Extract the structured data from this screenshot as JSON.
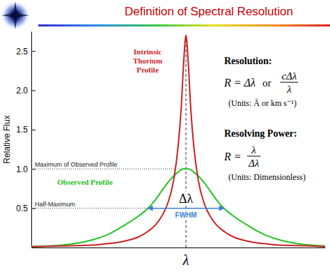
{
  "chart_data": {
    "type": "line",
    "title": "Definition of Spectral Resolution",
    "y_label": "Relative Flux",
    "x_label": "λ",
    "x": [
      -1,
      -0.8,
      -0.6,
      -0.5,
      -0.4,
      -0.3,
      -0.25,
      -0.2,
      -0.15,
      -0.12,
      -0.08,
      -0.05,
      -0.03,
      -0.015,
      0,
      0.015,
      0.03,
      0.05,
      0.08,
      0.12,
      0.15,
      0.2,
      0.25,
      0.3,
      0.4,
      0.5,
      0.6,
      0.8,
      0.9
    ],
    "series": [
      {
        "name": "Intrinsic Thorium Profile",
        "color": "#cc1f1f",
        "values": [
          0.01,
          0.02,
          0.03,
          0.05,
          0.08,
          0.14,
          0.2,
          0.28,
          0.42,
          0.55,
          0.85,
          1.3,
          1.8,
          2.35,
          2.7,
          2.35,
          1.8,
          1.3,
          0.85,
          0.55,
          0.42,
          0.28,
          0.2,
          0.14,
          0.08,
          0.05,
          0.03,
          0.02,
          0.01
        ]
      },
      {
        "name": "Observed Profile",
        "color": "#22c322",
        "values": [
          0.01,
          0.03,
          0.1,
          0.17,
          0.28,
          0.41,
          0.49,
          0.6,
          0.74,
          0.82,
          0.91,
          0.96,
          0.99,
          1.0,
          1.0,
          1.0,
          0.99,
          0.96,
          0.91,
          0.82,
          0.74,
          0.6,
          0.49,
          0.41,
          0.28,
          0.17,
          0.1,
          0.03,
          0.02
        ]
      }
    ],
    "xlim": [
      -1,
      0.9
    ],
    "ylim": [
      0,
      2.75
    ],
    "yticks": [
      0.5,
      {
        "value": 1,
        "label": "1.0"
      },
      1.5,
      {
        "value": 2,
        "label": "2.0"
      },
      2.5
    ],
    "tick_labels": "y",
    "grid": false,
    "center_x": 0,
    "reference_lines": [
      {
        "value": 1,
        "label": "Maximum of Observed Profile"
      },
      {
        "value": 0.5,
        "label": "Half-Maximum"
      }
    ],
    "fwhm": {
      "x": [
        -0.25,
        0.25
      ],
      "y": 0.5,
      "label": "Δλ",
      "caption": "FWHM"
    },
    "panel": {
      "resolution": {
        "heading": "Resolution:",
        "lhs": "R = Δλ",
        "or": "or",
        "numerator": "cΔλ",
        "denominator": "λ",
        "units": "(Units: Å or km s⁻¹)"
      },
      "resolving_power": {
        "heading": "Resolving Power:",
        "lhs": "R =",
        "numerator": "λ",
        "denominator": "Δλ",
        "units": "(Units: Dimensionless)"
      }
    }
  }
}
